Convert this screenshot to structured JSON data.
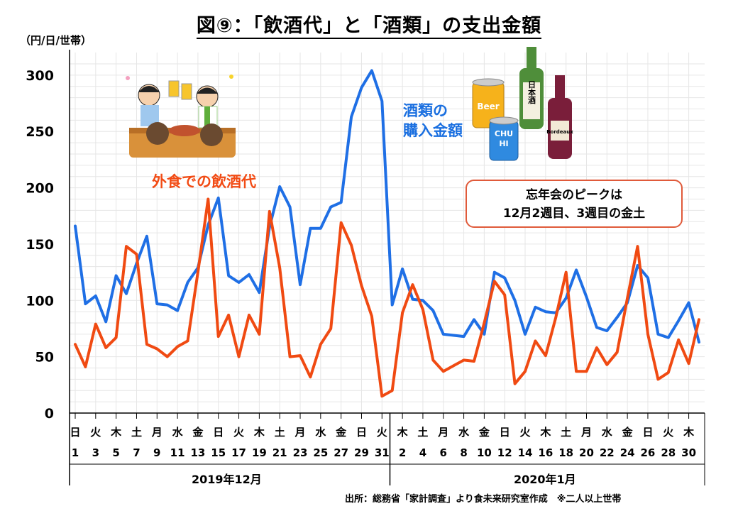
{
  "title": "図⑨：「飲酒代」と「酒類」の支出金額",
  "unit_label": "（円/日/世帯）",
  "source": "出所：総務省「家計調査」より食未来研究室作成　※二人以上世帯",
  "annotation": {
    "line1": "忘年会のピークは",
    "line2": "12月2週目、3週目の金土"
  },
  "series_labels": {
    "alcohol_purchase_1": "酒類の",
    "alcohol_purchase_2": "購入金額",
    "eating_out_drinks": "外食での飲酒代"
  },
  "colors": {
    "alcohol_purchase": "#1f6fe5",
    "eating_out_drinks": "#f04a12",
    "callout_border": "#e05a3a"
  },
  "icons": [
    "drinking-party-illustration",
    "beer-can-icon",
    "chuhi-can-icon",
    "sake-bottle-icon",
    "wine-bottle-icon"
  ],
  "illustration_text": {
    "beer": "Beer",
    "chu": "CHU",
    "hi": "HI",
    "sake": "日本酒",
    "wine": "Bordeaux"
  },
  "chart_data": {
    "type": "line",
    "ylim": [
      0,
      310
    ],
    "yticks": [
      0,
      50,
      100,
      150,
      200,
      250,
      300
    ],
    "grid": true,
    "months": [
      "2019年12月",
      "2020年1月"
    ],
    "weekday_ticks": [
      "日",
      "火",
      "木",
      "土",
      "月",
      "水",
      "金",
      "日",
      "火",
      "木",
      "土",
      "月",
      "水",
      "金",
      "日",
      "火",
      "木",
      "土",
      "月",
      "水",
      "金",
      "日",
      "火",
      "木",
      "土",
      "月",
      "水",
      "金",
      "日",
      "火",
      "木"
    ],
    "day_ticks": [
      "1",
      "3",
      "5",
      "7",
      "9",
      "11",
      "13",
      "15",
      "17",
      "19",
      "21",
      "23",
      "25",
      "27",
      "29",
      "31",
      "2",
      "4",
      "6",
      "8",
      "10",
      "12",
      "14",
      "16",
      "18",
      "20",
      "22",
      "24",
      "26",
      "28",
      "30"
    ],
    "x": [
      "2019-12-01",
      "2019-12-02",
      "2019-12-03",
      "2019-12-04",
      "2019-12-05",
      "2019-12-06",
      "2019-12-07",
      "2019-12-08",
      "2019-12-09",
      "2019-12-10",
      "2019-12-11",
      "2019-12-12",
      "2019-12-13",
      "2019-12-14",
      "2019-12-15",
      "2019-12-16",
      "2019-12-17",
      "2019-12-18",
      "2019-12-19",
      "2019-12-20",
      "2019-12-21",
      "2019-12-22",
      "2019-12-23",
      "2019-12-24",
      "2019-12-25",
      "2019-12-26",
      "2019-12-27",
      "2019-12-28",
      "2019-12-29",
      "2019-12-30",
      "2019-12-31",
      "2020-01-01",
      "2020-01-02",
      "2020-01-03",
      "2020-01-04",
      "2020-01-05",
      "2020-01-06",
      "2020-01-07",
      "2020-01-08",
      "2020-01-09",
      "2020-01-10",
      "2020-01-11",
      "2020-01-12",
      "2020-01-13",
      "2020-01-14",
      "2020-01-15",
      "2020-01-16",
      "2020-01-17",
      "2020-01-18",
      "2020-01-19",
      "2020-01-20",
      "2020-01-21",
      "2020-01-22",
      "2020-01-23",
      "2020-01-24",
      "2020-01-25",
      "2020-01-26",
      "2020-01-27",
      "2020-01-28",
      "2020-01-29",
      "2020-01-30",
      "2020-01-31"
    ],
    "series": [
      {
        "key": "alcohol_purchase",
        "values": [
          166,
          97,
          104,
          81,
          122,
          106,
          133,
          157,
          97,
          96,
          91,
          116,
          129,
          167,
          191,
          122,
          116,
          123,
          107,
          165,
          201,
          183,
          114,
          164,
          164,
          183,
          187,
          263,
          289,
          304,
          277,
          96,
          128,
          101,
          100,
          91,
          70,
          69,
          68,
          83,
          70,
          125,
          120,
          100,
          70,
          94,
          90,
          89,
          102,
          127,
          103,
          76,
          73,
          85,
          98,
          131,
          120,
          70,
          67,
          82,
          98,
          63
        ]
      },
      {
        "key": "eating_out_drinks",
        "values": [
          61,
          41,
          79,
          58,
          67,
          148,
          141,
          61,
          57,
          50,
          59,
          64,
          125,
          190,
          68,
          87,
          50,
          87,
          70,
          179,
          129,
          50,
          51,
          32,
          61,
          75,
          169,
          149,
          113,
          86,
          15,
          20,
          89,
          114,
          92,
          47,
          37,
          42,
          47,
          46,
          80,
          117,
          105,
          26,
          37,
          64,
          51,
          85,
          125,
          37,
          37,
          58,
          43,
          54,
          102,
          148,
          70,
          30,
          36,
          65,
          44,
          83
        ]
      }
    ]
  }
}
